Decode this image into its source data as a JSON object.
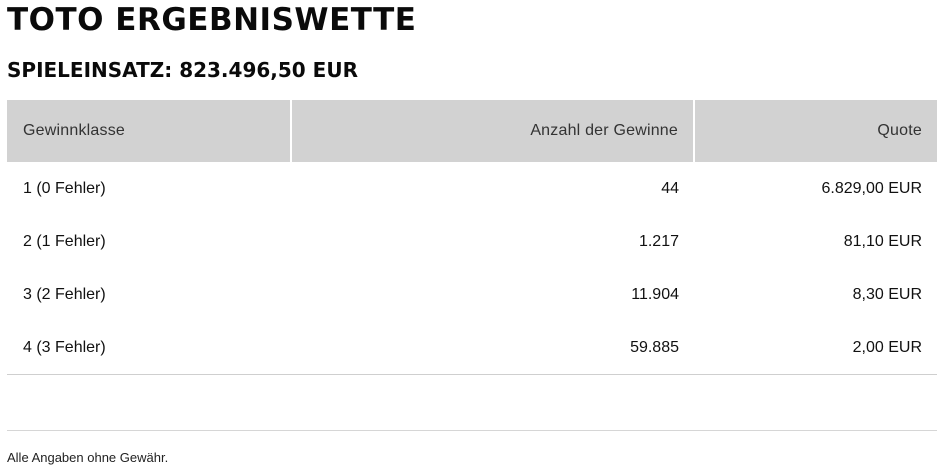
{
  "title": "TOTO ERGEBNISWETTE",
  "stake": "SPIELEINSATZ: 823.496,50 EUR",
  "table": {
    "headers": [
      "Gewinnklasse",
      "Anzahl der Gewinne",
      "Quote"
    ],
    "rows": [
      [
        "1 (0 Fehler)",
        "44",
        "6.829,00 EUR"
      ],
      [
        "2 (1 Fehler)",
        "1.217",
        "81,10 EUR"
      ],
      [
        "3 (2 Fehler)",
        "11.904",
        "8,30 EUR"
      ],
      [
        "4 (3 Fehler)",
        "59.885",
        "2,00 EUR"
      ]
    ]
  },
  "footer": "Alle Angaben ohne Gewähr.",
  "colors": {
    "header_bg": "#d2d2d2",
    "text": "#000000",
    "divider": "#d6d6d6"
  }
}
